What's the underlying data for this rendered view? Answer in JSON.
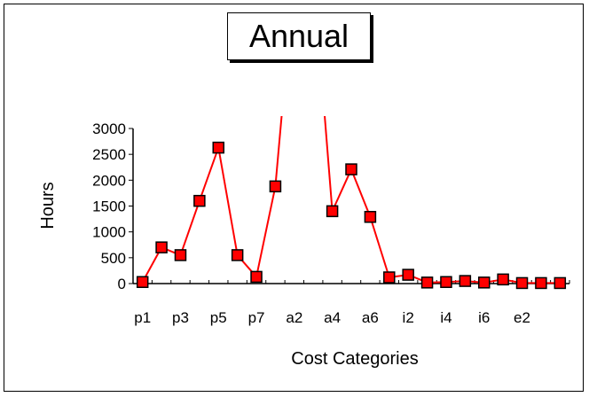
{
  "chart_data": {
    "type": "line",
    "title": "Annual",
    "xlabel": "Cost Categories",
    "ylabel": "Hours",
    "ylim": [
      0,
      3000
    ],
    "yticks": [
      0,
      500,
      1000,
      1500,
      2000,
      2500,
      3000
    ],
    "x_tick_labels": [
      "p1",
      "p3",
      "p5",
      "p7",
      "a2",
      "a4",
      "a6",
      "i2",
      "i4",
      "i6",
      "e2"
    ],
    "grid": false,
    "series_color": "#ff0000",
    "marker_color": "#ff0000",
    "marker_border": "#000000",
    "values": [
      30,
      700,
      550,
      1600,
      2630,
      550,
      130,
      1880,
      6000,
      6000,
      1400,
      2210,
      1290,
      120,
      170,
      20,
      30,
      50,
      20,
      80,
      10,
      10,
      10
    ],
    "plotted_points": [
      true,
      true,
      true,
      true,
      true,
      true,
      true,
      true,
      false,
      false,
      true,
      true,
      true,
      true,
      true,
      true,
      true,
      true,
      true,
      true,
      true,
      true,
      true
    ]
  }
}
